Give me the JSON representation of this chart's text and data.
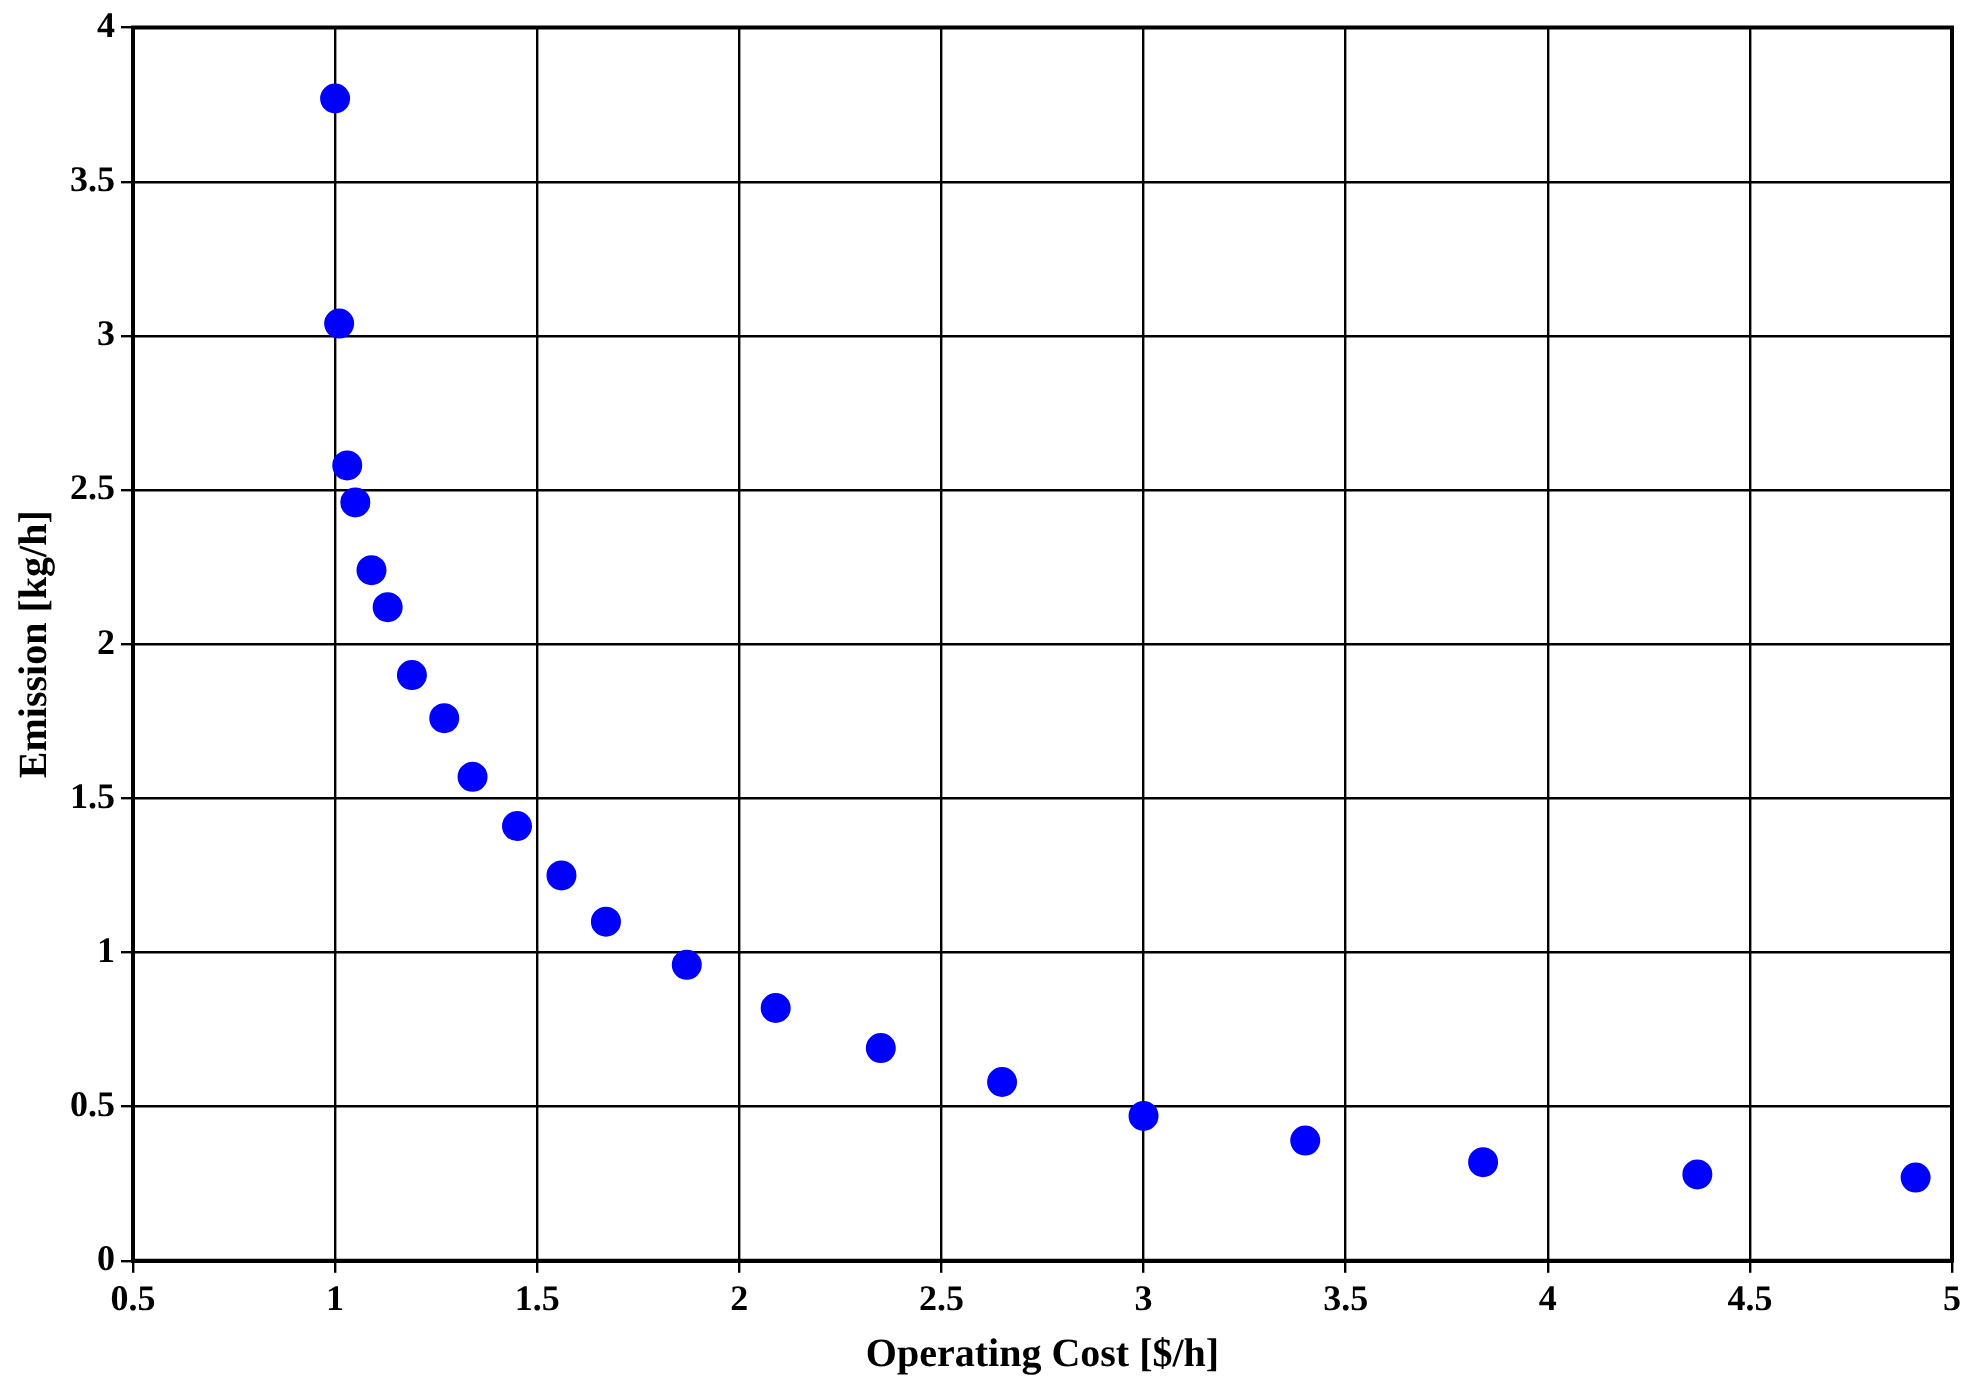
{
  "chart_data": {
    "type": "scatter",
    "xlabel": "Operating Cost [$/h]",
    "ylabel": "Emission [kg/h]",
    "x": [
      1.0,
      1.01,
      1.03,
      1.05,
      1.09,
      1.13,
      1.19,
      1.27,
      1.34,
      1.45,
      1.56,
      1.67,
      1.87,
      2.09,
      2.35,
      2.65,
      3.0,
      3.4,
      3.84,
      4.37,
      4.91
    ],
    "series": [
      {
        "color": "#0000ff",
        "values": [
          3.77,
          3.04,
          2.58,
          2.46,
          2.24,
          2.12,
          1.9,
          1.76,
          1.57,
          1.41,
          1.25,
          1.1,
          0.96,
          0.82,
          0.69,
          0.58,
          0.47,
          0.39,
          0.32,
          0.28,
          0.27
        ]
      }
    ],
    "xlim": [
      0.5,
      5
    ],
    "xticks": [
      0.5,
      1,
      1.5,
      2,
      2.5,
      3,
      3.5,
      4,
      4.5,
      5
    ],
    "ylim": [
      0,
      4
    ],
    "yticks": [
      0,
      0.5,
      1,
      1.5,
      2,
      2.5,
      3,
      3.5,
      4
    ],
    "grid": true,
    "marker": "circle",
    "legend": false
  }
}
